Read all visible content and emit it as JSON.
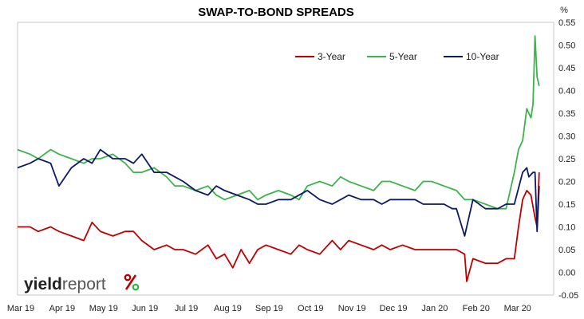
{
  "chart_data": {
    "type": "line",
    "title": "SWAP-TO-BOND SPREADS",
    "y_unit": "%",
    "ylim": [
      -0.05,
      0.55
    ],
    "y_ticks": [
      "0.55",
      "0.50",
      "0.45",
      "0.40",
      "0.35",
      "0.30",
      "0.25",
      "0.20",
      "0.15",
      "0.10",
      "0.05",
      "0.00",
      "-0.05"
    ],
    "x_ticks": [
      "Mar 19",
      "Apr 19",
      "May 19",
      "Jun 19",
      "Jul 19",
      "Aug 19",
      "Sep 19",
      "Oct 19",
      "Nov 19",
      "Dec 19",
      "Jan 20",
      "Feb 20",
      "Mar 20"
    ],
    "legend_position": "top-right",
    "series": [
      {
        "name": "3-Year",
        "color": "#c00000",
        "x": [
          0.0,
          0.3,
          0.5,
          0.8,
          1.0,
          1.3,
          1.6,
          1.8,
          2.0,
          2.3,
          2.6,
          2.8,
          3.0,
          3.3,
          3.6,
          3.8,
          4.0,
          4.3,
          4.6,
          4.8,
          5.0,
          5.2,
          5.4,
          5.6,
          5.8,
          6.0,
          6.3,
          6.6,
          6.8,
          7.0,
          7.3,
          7.6,
          7.8,
          8.0,
          8.3,
          8.6,
          8.8,
          9.0,
          9.3,
          9.6,
          9.8,
          10.0,
          10.3,
          10.6,
          10.8,
          10.85,
          11.0,
          11.3,
          11.6,
          11.8,
          12.0,
          12.1,
          12.2,
          12.3,
          12.4,
          12.5,
          12.55,
          12.6
        ],
        "values": [
          0.1,
          0.1,
          0.09,
          0.1,
          0.09,
          0.08,
          0.07,
          0.11,
          0.09,
          0.08,
          0.09,
          0.09,
          0.07,
          0.05,
          0.06,
          0.05,
          0.05,
          0.04,
          0.06,
          0.03,
          0.04,
          0.01,
          0.05,
          0.02,
          0.05,
          0.06,
          0.05,
          0.04,
          0.06,
          0.05,
          0.04,
          0.07,
          0.05,
          0.07,
          0.06,
          0.05,
          0.06,
          0.05,
          0.06,
          0.05,
          0.05,
          0.05,
          0.05,
          0.05,
          0.04,
          -0.02,
          0.03,
          0.02,
          0.02,
          0.03,
          0.03,
          0.1,
          0.16,
          0.18,
          0.17,
          0.12,
          0.1,
          0.22
        ]
      },
      {
        "name": "5-Year",
        "color": "#3cb44b",
        "x": [
          0.0,
          0.3,
          0.5,
          0.8,
          1.0,
          1.3,
          1.6,
          1.8,
          2.0,
          2.3,
          2.6,
          2.8,
          3.0,
          3.3,
          3.6,
          3.8,
          4.0,
          4.3,
          4.6,
          4.8,
          5.0,
          5.3,
          5.6,
          5.8,
          6.0,
          6.3,
          6.6,
          6.8,
          7.0,
          7.3,
          7.6,
          7.8,
          8.0,
          8.3,
          8.6,
          8.8,
          9.0,
          9.3,
          9.6,
          9.8,
          10.0,
          10.3,
          10.6,
          10.8,
          11.0,
          11.3,
          11.6,
          11.8,
          12.0,
          12.1,
          12.2,
          12.3,
          12.35,
          12.4,
          12.45,
          12.5,
          12.55,
          12.6
        ],
        "values": [
          0.27,
          0.26,
          0.25,
          0.27,
          0.26,
          0.25,
          0.24,
          0.25,
          0.25,
          0.26,
          0.24,
          0.22,
          0.22,
          0.23,
          0.21,
          0.19,
          0.19,
          0.18,
          0.19,
          0.17,
          0.16,
          0.17,
          0.18,
          0.16,
          0.17,
          0.18,
          0.17,
          0.16,
          0.19,
          0.2,
          0.19,
          0.21,
          0.2,
          0.19,
          0.18,
          0.2,
          0.2,
          0.19,
          0.18,
          0.2,
          0.2,
          0.19,
          0.18,
          0.16,
          0.16,
          0.15,
          0.14,
          0.14,
          0.22,
          0.27,
          0.29,
          0.36,
          0.35,
          0.34,
          0.37,
          0.52,
          0.43,
          0.41
        ]
      },
      {
        "name": "10-Year",
        "color": "#0c1a66",
        "x": [
          0.0,
          0.3,
          0.5,
          0.8,
          1.0,
          1.3,
          1.6,
          1.8,
          2.0,
          2.3,
          2.6,
          2.8,
          3.0,
          3.3,
          3.6,
          3.8,
          4.0,
          4.3,
          4.6,
          4.8,
          5.0,
          5.3,
          5.6,
          5.8,
          6.0,
          6.3,
          6.6,
          6.8,
          7.0,
          7.3,
          7.6,
          7.8,
          8.0,
          8.3,
          8.6,
          8.8,
          9.0,
          9.3,
          9.6,
          9.8,
          10.0,
          10.3,
          10.5,
          10.6,
          10.8,
          11.0,
          11.3,
          11.6,
          11.8,
          12.0,
          12.2,
          12.3,
          12.35,
          12.45,
          12.5,
          12.55,
          12.6
        ],
        "values": [
          0.23,
          0.24,
          0.25,
          0.24,
          0.19,
          0.23,
          0.25,
          0.24,
          0.27,
          0.25,
          0.25,
          0.24,
          0.26,
          0.22,
          0.22,
          0.21,
          0.2,
          0.18,
          0.17,
          0.19,
          0.18,
          0.17,
          0.16,
          0.15,
          0.15,
          0.16,
          0.16,
          0.17,
          0.18,
          0.16,
          0.15,
          0.16,
          0.17,
          0.16,
          0.16,
          0.15,
          0.16,
          0.16,
          0.16,
          0.15,
          0.15,
          0.15,
          0.14,
          0.14,
          0.08,
          0.16,
          0.14,
          0.14,
          0.15,
          0.15,
          0.22,
          0.23,
          0.21,
          0.22,
          0.22,
          0.09,
          0.19
        ]
      }
    ]
  },
  "logo": {
    "text_main": "yield",
    "text_report": "report",
    "text_pct": "%",
    "color_pct_left": "#c00000",
    "color_pct_right": "#3cb44b"
  }
}
